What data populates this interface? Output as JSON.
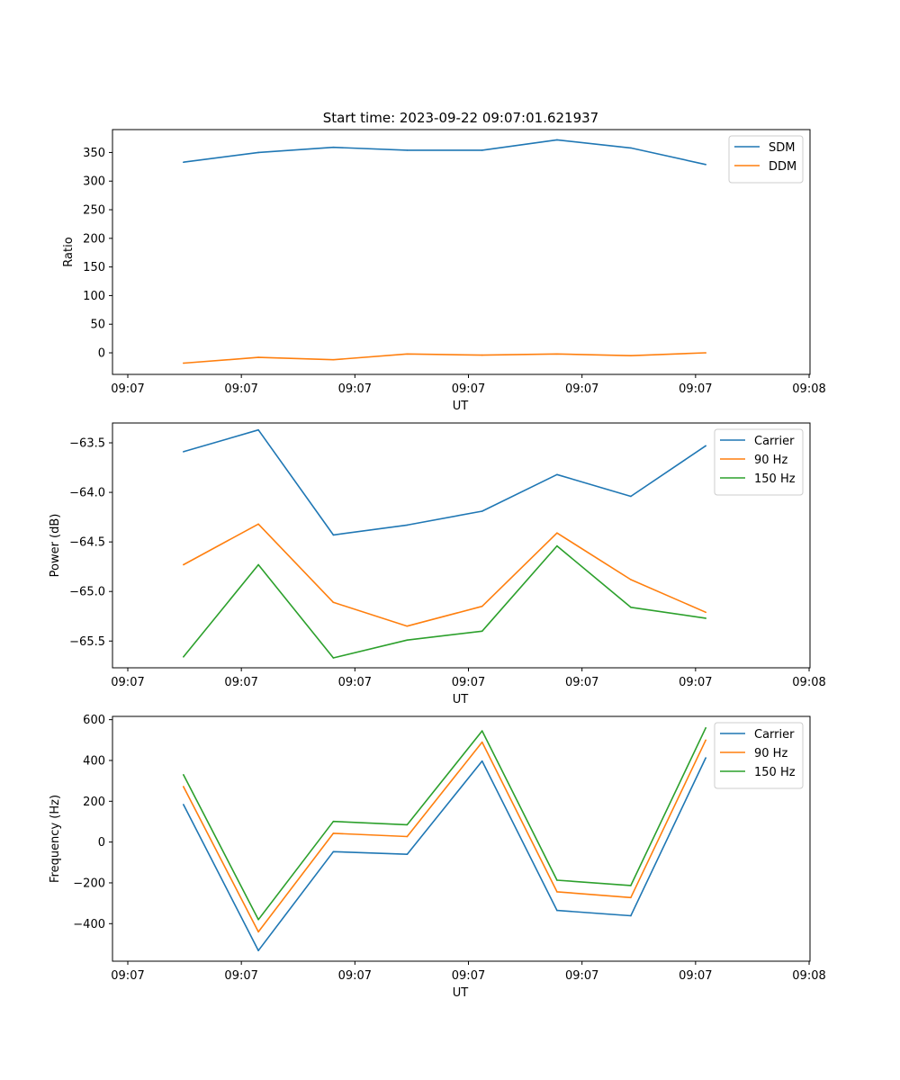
{
  "figure": {
    "title": "Start time: 2023-09-22 09:07:01.621937"
  },
  "colors": {
    "blue": "#1f77b4",
    "orange": "#ff7f0e",
    "green": "#2ca02c"
  },
  "chart_data": [
    {
      "type": "line",
      "title": "Start time: 2023-09-22 09:07:01.621937",
      "xlabel": "UT",
      "ylabel": "Ratio",
      "xlim": [
        0,
        6.0
      ],
      "ylim": [
        -37.7,
        390
      ],
      "x_ticks": [
        0,
        1,
        2,
        3,
        4,
        5,
        6
      ],
      "x_tick_labels": [
        "09:07",
        "09:07",
        "09:07",
        "09:07",
        "09:07",
        "09:07",
        "09:08"
      ],
      "y_ticks": [
        0,
        50,
        100,
        150,
        200,
        250,
        300,
        350
      ],
      "y_tick_labels": [
        "0",
        "50",
        "100",
        "150",
        "200",
        "250",
        "300",
        "350"
      ],
      "x": [
        0.49,
        1.15,
        1.81,
        2.46,
        3.12,
        3.78,
        4.43,
        5.09
      ],
      "series": [
        {
          "name": "SDM",
          "color": "#1f77b4",
          "values": [
            333,
            350,
            359,
            354,
            354,
            372,
            358,
            329
          ]
        },
        {
          "name": "DDM",
          "color": "#ff7f0e",
          "values": [
            -18,
            -8,
            -12,
            -2,
            -4,
            -2,
            -5,
            0
          ]
        }
      ],
      "legend": "top-right"
    },
    {
      "type": "line",
      "title": "",
      "xlabel": "UT",
      "ylabel": "Power (dB)",
      "xlim": [
        0,
        6.0
      ],
      "ylim": [
        -65.77,
        -63.3
      ],
      "x_ticks": [
        0,
        1,
        2,
        3,
        4,
        5,
        6
      ],
      "x_tick_labels": [
        "09:07",
        "09:07",
        "09:07",
        "09:07",
        "09:07",
        "09:07",
        "09:08"
      ],
      "y_ticks": [
        -65.5,
        -65.0,
        -64.5,
        -64.0,
        -63.5
      ],
      "y_tick_labels": [
        "−65.5",
        "−65.0",
        "−64.5",
        "−64.0",
        "−63.5"
      ],
      "x": [
        0.49,
        1.15,
        1.81,
        2.46,
        3.12,
        3.78,
        4.43,
        5.09
      ],
      "series": [
        {
          "name": "Carrier",
          "color": "#1f77b4",
          "values": [
            -63.59,
            -63.37,
            -64.43,
            -64.33,
            -64.19,
            -63.82,
            -64.04,
            -63.53
          ]
        },
        {
          "name": "90 Hz",
          "color": "#ff7f0e",
          "values": [
            -64.73,
            -64.32,
            -65.11,
            -65.35,
            -65.15,
            -64.41,
            -64.88,
            -65.21
          ]
        },
        {
          "name": "150 Hz",
          "color": "#2ca02c",
          "values": [
            -65.66,
            -64.73,
            -65.67,
            -65.49,
            -65.4,
            -64.54,
            -65.16,
            -65.27
          ]
        }
      ],
      "legend": "top-right"
    },
    {
      "type": "line",
      "title": "",
      "xlabel": "UT",
      "ylabel": "Frequency (Hz)",
      "xlim": [
        0,
        6.0
      ],
      "ylim": [
        -584,
        616
      ],
      "x_ticks": [
        0,
        1,
        2,
        3,
        4,
        5,
        6
      ],
      "x_tick_labels": [
        "09:07",
        "09:07",
        "09:07",
        "09:07",
        "09:07",
        "09:07",
        "09:08"
      ],
      "y_ticks": [
        -400,
        -200,
        0,
        200,
        400,
        600
      ],
      "y_tick_labels": [
        "−400",
        "−200",
        "0",
        "200",
        "400",
        "600"
      ],
      "x": [
        0.49,
        1.15,
        1.81,
        2.46,
        3.12,
        3.78,
        4.43,
        5.09
      ],
      "series": [
        {
          "name": "Carrier",
          "color": "#1f77b4",
          "values": [
            184,
            -532,
            -47,
            -60,
            397,
            -335,
            -361,
            413
          ]
        },
        {
          "name": "90 Hz",
          "color": "#ff7f0e",
          "values": [
            272,
            -440,
            43,
            27,
            490,
            -244,
            -272,
            500
          ]
        },
        {
          "name": "150 Hz",
          "color": "#2ca02c",
          "values": [
            330,
            -380,
            101,
            85,
            545,
            -187,
            -213,
            560
          ]
        }
      ],
      "legend": "top-right"
    }
  ]
}
